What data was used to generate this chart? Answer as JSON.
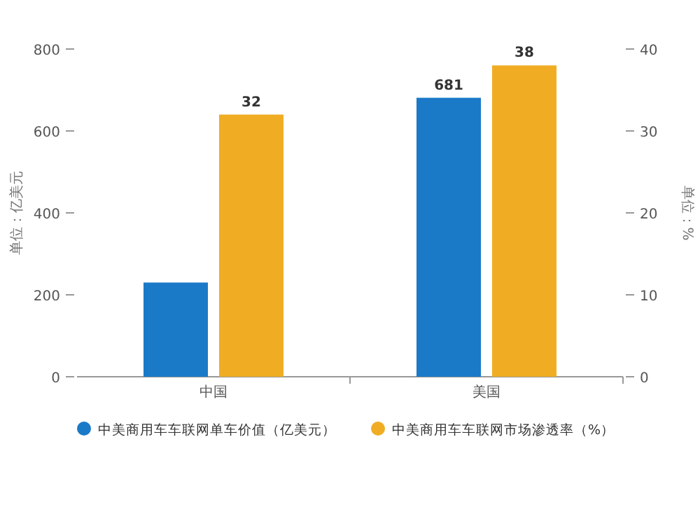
{
  "chart_data": {
    "type": "bar",
    "categories": [
      "中国",
      "美国"
    ],
    "ylabel": "单位：亿美元",
    "y2label": "单位：%",
    "ylim": [
      0,
      800
    ],
    "yticks": [
      0,
      200,
      400,
      600,
      800
    ],
    "y2lim": [
      0,
      40
    ],
    "y2ticks": [
      0,
      10,
      20,
      30,
      40
    ],
    "legend": "bottom",
    "grid": false,
    "series": [
      {
        "name": "中美商用车车联网单车价值（亿美元）",
        "color": "#1a7ac8",
        "values": [
          230,
          681
        ],
        "value_labels": [
          null,
          "681"
        ]
      },
      {
        "name": "中美商用车车联网市场渗透率（%）",
        "color": "#f0ad24",
        "axis": "y2",
        "values": [
          32,
          38
        ],
        "value_labels": [
          "32",
          "38"
        ]
      }
    ]
  }
}
